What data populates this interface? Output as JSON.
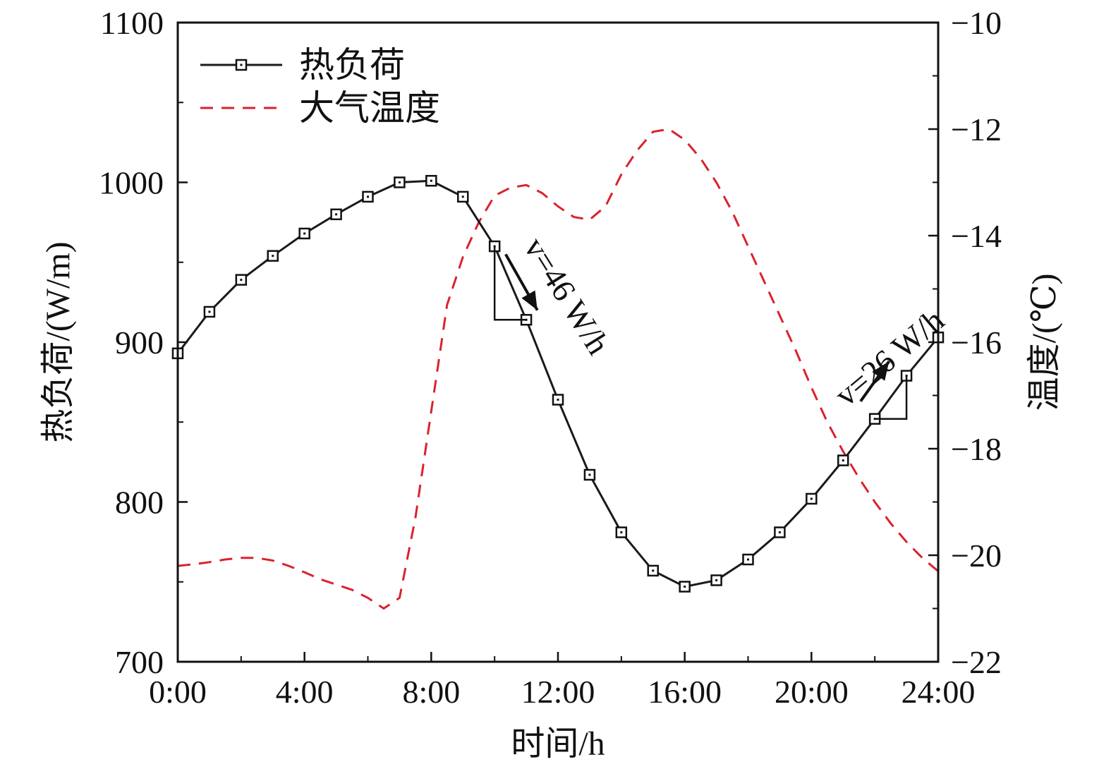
{
  "chart_data": {
    "type": "line",
    "xlabel": "时间/h",
    "ylabel_left": "热负荷/(W/m)",
    "ylabel_right": "温度/(℃)",
    "x_ticks": [
      0,
      4,
      8,
      12,
      16,
      20,
      24
    ],
    "x_tick_labels": [
      "0:00",
      "4:00",
      "8:00",
      "12:00",
      "16:00",
      "20:00",
      "24:00"
    ],
    "y_left_ticks": [
      700,
      800,
      900,
      1000,
      1100
    ],
    "y_left_tick_labels": [
      "700",
      "800",
      "900",
      "1000",
      "1100"
    ],
    "y_right_ticks": [
      -22,
      -20,
      -18,
      -16,
      -14,
      -12,
      -10
    ],
    "y_right_tick_labels": [
      "−22",
      "−20",
      "−18",
      "−16",
      "−14",
      "−12",
      "−10"
    ],
    "xlim": [
      0,
      24
    ],
    "ylim_left": [
      700,
      1100
    ],
    "ylim_right": [
      -22,
      -10
    ],
    "grid": false,
    "legend_position": "top-left",
    "series": [
      {
        "name": "热负荷",
        "axis": "left",
        "style": "solid-square-markers",
        "color": "#1a1a1a",
        "x": [
          0,
          1,
          2,
          3,
          4,
          5,
          6,
          7,
          8,
          9,
          10,
          11,
          12,
          13,
          14,
          15,
          16,
          17,
          18,
          19,
          20,
          21,
          22,
          23,
          24
        ],
        "values": [
          893,
          919,
          939,
          954,
          968,
          980,
          991,
          1000,
          1001,
          991,
          960,
          914,
          864,
          817,
          781,
          757,
          747,
          751,
          764,
          781,
          802,
          826,
          852,
          879,
          903
        ]
      },
      {
        "name": "大气温度",
        "axis": "right",
        "style": "dashed",
        "color": "#d9232e",
        "x": [
          0,
          0.5,
          1,
          1.5,
          2,
          2.5,
          3,
          3.5,
          4,
          4.5,
          5,
          5.5,
          6,
          6.5,
          7,
          7.5,
          8,
          8.5,
          9,
          9.5,
          10,
          10.5,
          11,
          11.5,
          12,
          12.5,
          13,
          13.5,
          14,
          14.5,
          15,
          15.5,
          16,
          16.5,
          17,
          17.5,
          18,
          18.5,
          19,
          19.5,
          20,
          20.5,
          21,
          21.5,
          22,
          22.5,
          23,
          23.5,
          24
        ],
        "values": [
          -20.2,
          -20.17,
          -20.13,
          -20.08,
          -20.05,
          -20.05,
          -20.1,
          -20.2,
          -20.32,
          -20.45,
          -20.55,
          -20.65,
          -20.8,
          -21.0,
          -20.8,
          -19.3,
          -17.3,
          -15.3,
          -14.4,
          -13.75,
          -13.25,
          -13.1,
          -13.05,
          -13.2,
          -13.45,
          -13.65,
          -13.7,
          -13.45,
          -12.85,
          -12.4,
          -12.05,
          -12.0,
          -12.2,
          -12.55,
          -13.0,
          -13.55,
          -14.2,
          -14.85,
          -15.5,
          -16.15,
          -16.85,
          -17.5,
          -18.05,
          -18.55,
          -19.0,
          -19.4,
          -19.75,
          -20.05,
          -20.3
        ]
      }
    ],
    "annotations": [
      {
        "label": "v=46 W/h",
        "x": 11,
        "y": 950
      },
      {
        "label": "v=26 W/h",
        "x": 22.3,
        "y": 880
      }
    ]
  }
}
